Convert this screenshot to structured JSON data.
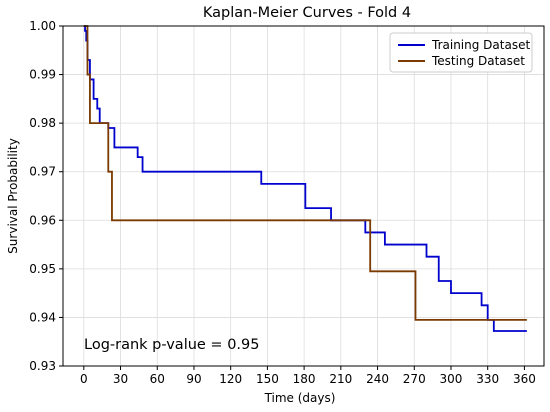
{
  "chart_data": {
    "type": "line",
    "title": "Kaplan-Meier Curves - Fold 4",
    "xlabel": "Time (days)",
    "ylabel": "Survival Probability",
    "xlim": [
      -17,
      376
    ],
    "ylim": [
      0.93,
      1.0
    ],
    "xticks": [
      0,
      30,
      60,
      90,
      120,
      150,
      180,
      210,
      240,
      270,
      300,
      330,
      360
    ],
    "yticks": [
      0.93,
      0.94,
      0.95,
      0.96,
      0.97,
      0.98,
      0.99,
      1.0
    ],
    "ytick_labels": [
      "0.93",
      "0.94",
      "0.95",
      "0.96",
      "0.97",
      "0.98",
      "0.99",
      "1.00"
    ],
    "grid": true,
    "legend_position": "top-right",
    "annotation": "Log-rank p-value = 0.95",
    "series": [
      {
        "name": "Training Dataset",
        "color": "#0000cd",
        "x": [
          0,
          1,
          2,
          3,
          5,
          8,
          11,
          13,
          16,
          20,
          25,
          40,
          44,
          48,
          145,
          180,
          181,
          202,
          225,
          230,
          246,
          269,
          280,
          290,
          300,
          318,
          325,
          327,
          330,
          335,
          362
        ],
        "y": [
          1.0,
          0.999,
          0.997,
          0.993,
          0.989,
          0.985,
          0.983,
          0.98,
          0.98,
          0.979,
          0.975,
          0.975,
          0.973,
          0.97,
          0.9675,
          0.9675,
          0.9625,
          0.96,
          0.96,
          0.9575,
          0.955,
          0.955,
          0.9525,
          0.9475,
          0.945,
          0.945,
          0.9425,
          0.9425,
          0.9395,
          0.9372,
          0.9372
        ]
      },
      {
        "name": "Testing Dataset",
        "color": "#7a3a00",
        "x": [
          0,
          2,
          3,
          5,
          17,
          20,
          23,
          233,
          234,
          270,
          271,
          362
        ],
        "y": [
          1.0,
          1.0,
          0.99,
          0.98,
          0.98,
          0.97,
          0.96,
          0.96,
          0.9495,
          0.9495,
          0.9395,
          0.9395
        ]
      }
    ]
  }
}
